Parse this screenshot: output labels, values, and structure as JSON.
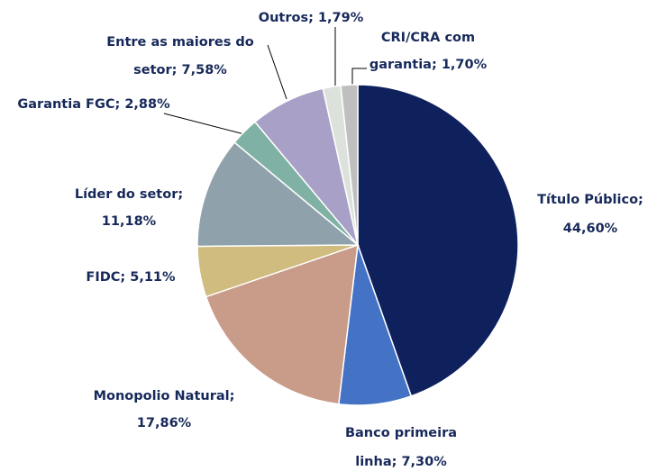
{
  "chart_data": {
    "type": "pie",
    "categories": [
      "Título Público",
      "Banco primeira linha",
      "Monopolio Natural",
      "FIDC",
      "Líder do setor",
      "Garantia FGC",
      "Entre as maiores do setor",
      "Outros",
      "CRI/CRA com garantia"
    ],
    "values": [
      44.6,
      7.3,
      17.86,
      5.11,
      11.18,
      2.88,
      7.58,
      1.79,
      1.7
    ],
    "value_labels": [
      [
        "Título Público;",
        "44,60%"
      ],
      [
        "Banco primeira",
        "linha; 7,30%"
      ],
      [
        "Monopolio Natural;",
        "17,86%"
      ],
      [
        "FIDC; 5,11%"
      ],
      [
        "Líder do setor;",
        "11,18%"
      ],
      [
        "Garantia FGC; 2,88%"
      ],
      [
        "Entre as maiores do",
        "setor; 7,58%"
      ],
      [
        "Outros; 1,79%"
      ],
      [
        "CRI/CRA com",
        "garantia; 1,70%"
      ]
    ],
    "colors": [
      "#0e215c",
      "#4472c4",
      "#c99b89",
      "#cfbc7e",
      "#8fa1aa",
      "#7fb1a4",
      "#a9a0c7",
      "#dce2db",
      "#bfbfbf"
    ]
  }
}
